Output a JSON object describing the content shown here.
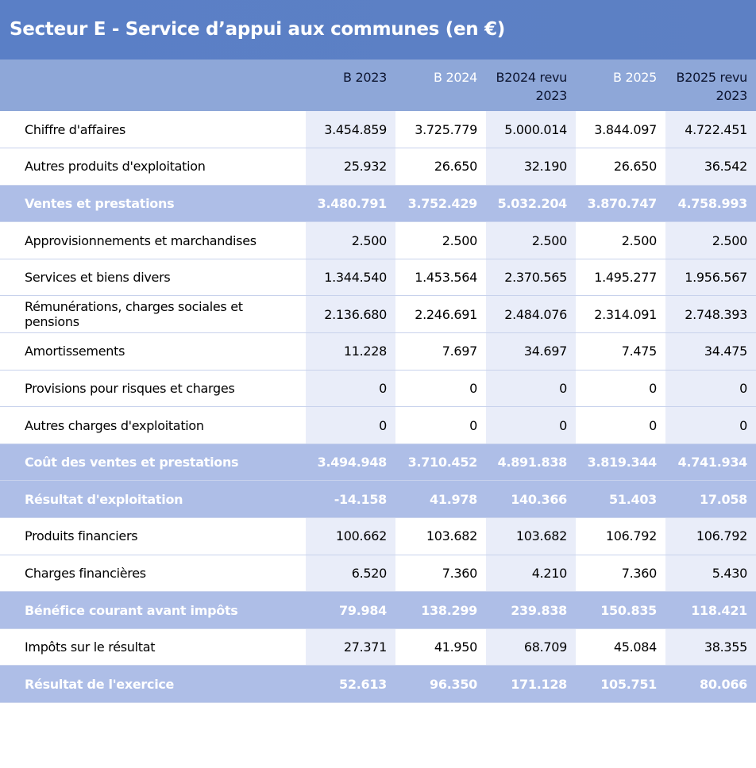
{
  "title": "Secteur E - Service d’appui aux communes (en €)",
  "header": [
    "B 2023",
    "B 2024",
    "B2024 revu 2023",
    "B 2025",
    "B2025 revu 2023"
  ],
  "rows": [
    {
      "label": "Chiffre d'affaires",
      "values": [
        "3.454.859",
        "3.725.779",
        "5.000.014",
        "3.844.097",
        "4.722.451"
      ]
    },
    {
      "label": "Autres produits d'exploitation",
      "values": [
        "25.932",
        "26.650",
        "32.190",
        "26.650",
        "36.542"
      ]
    },
    {
      "label": "Ventes et prestations",
      "values": [
        "3.480.791",
        "3.752.429",
        "5.032.204",
        "3.870.747",
        "4.758.993"
      ],
      "style": "total"
    },
    {
      "label": "Approvisionnements et marchandises",
      "values": [
        "2.500",
        "2.500",
        "2.500",
        "2.500",
        "2.500"
      ]
    },
    {
      "label": "Services et biens divers",
      "values": [
        "1.344.540",
        "1.453.564",
        "2.370.565",
        "1.495.277",
        "1.956.567"
      ]
    },
    {
      "label": "Rémunérations, charges sociales et pensions",
      "values": [
        "2.136.680",
        "2.246.691",
        "2.484.076",
        "2.314.091",
        "2.748.393"
      ]
    },
    {
      "label": "Amortissements",
      "values": [
        "11.228",
        "7.697",
        "34.697",
        "7.475",
        "34.475"
      ]
    },
    {
      "label": "Provisions pour risques et charges",
      "values": [
        "0",
        "0",
        "0",
        "0",
        "0"
      ]
    },
    {
      "label": "Autres charges d'exploitation",
      "values": [
        "0",
        "0",
        "0",
        "0",
        "0"
      ]
    },
    {
      "label": "Coût des ventes et prestations",
      "values": [
        "3.494.948",
        "3.710.452",
        "4.891.838",
        "3.819.344",
        "4.741.934"
      ],
      "style": "total"
    },
    {
      "label": "Résultat d'exploitation",
      "values": [
        "-14.158",
        "41.978",
        "140.366",
        "51.403",
        "17.058"
      ],
      "style": "total"
    },
    {
      "label": "Produits financiers",
      "values": [
        "100.662",
        "103.682",
        "103.682",
        "106.792",
        "106.792"
      ]
    },
    {
      "label": "Charges financières",
      "values": [
        "6.520",
        "7.360",
        "4.210",
        "7.360",
        "5.430"
      ]
    },
    {
      "label": "Bénéfice courant avant impôts",
      "values": [
        "79.984",
        "138.299",
        "239.838",
        "150.835",
        "118.421"
      ],
      "style": "total"
    },
    {
      "label": "Impôts sur le résultat",
      "values": [
        "27.371",
        "41.950",
        "68.709",
        "45.084",
        "38.355"
      ]
    },
    {
      "label": "Résultat de l'exercice",
      "values": [
        "52.613",
        "96.350",
        "171.128",
        "105.751",
        "80.066"
      ],
      "style": "total"
    }
  ]
}
